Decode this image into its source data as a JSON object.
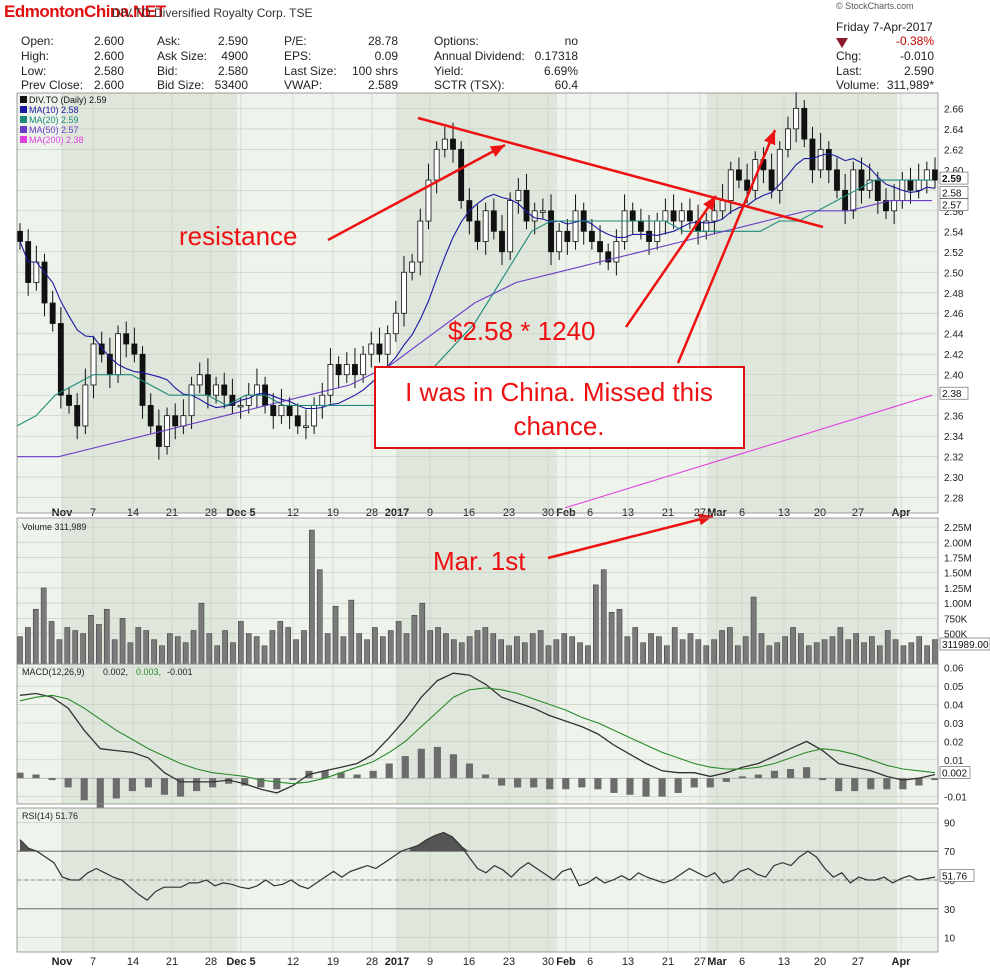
{
  "header": {
    "watermark": "EdmontonChina.NET",
    "ticker_line": "DIV.TO Diversified Royalty Corp. TSE",
    "credit": "© StockCharts.com",
    "date": "Friday 7-Apr-2017",
    "change_pct": "-0.38%",
    "chg_label": "Chg:",
    "chg_value": "-0.010",
    "last_label": "Last:",
    "last_value": "2.590",
    "volume_label": "Volume:",
    "volume_value": "311,989*",
    "down_arrow_color": "#8b1a2a",
    "rows": [
      [
        "Open:",
        "2.600",
        "Ask:",
        "2.590",
        "P/E:",
        "28.78",
        "Options:",
        "no"
      ],
      [
        "High:",
        "2.600",
        "Ask Size:",
        "4900",
        "EPS:",
        "0.09",
        "Annual Dividend:",
        "0.17318"
      ],
      [
        "Low:",
        "2.580",
        "Bid:",
        "2.580",
        "Last Size:",
        "100 shrs",
        "Yield:",
        "6.69%"
      ],
      [
        "Prev Close:",
        "2.600",
        "Bid Size:",
        "53400",
        "VWAP:",
        "2.589",
        "SCTR (TSX):",
        "60.4"
      ]
    ]
  },
  "chart_data": [
    {
      "type": "candlestick",
      "panel": "price",
      "legend": [
        {
          "label": "DIV.TO (Daily) 2.59",
          "color": "#111111"
        },
        {
          "label": "MA(10) 2.58",
          "color": "#1a1aa0"
        },
        {
          "label": "MA(20) 2.59",
          "color": "#1c8a7a"
        },
        {
          "label": "MA(50) 2.57",
          "color": "#6a3cc8"
        },
        {
          "label": "MA(200) 2.38",
          "color": "#e040e0"
        }
      ],
      "y_ticks": [
        "2.66",
        "2.64",
        "2.62",
        "2.60",
        "2.58",
        "2.56",
        "2.54",
        "2.52",
        "2.50",
        "2.48",
        "2.46",
        "2.44",
        "2.42",
        "2.40",
        "2.38",
        "2.36",
        "2.34",
        "2.32",
        "2.30",
        "2.28"
      ],
      "ylim": [
        2.265,
        2.675
      ],
      "close": [
        2.53,
        2.49,
        2.51,
        2.47,
        2.45,
        2.38,
        2.37,
        2.35,
        2.39,
        2.43,
        2.42,
        2.4,
        2.44,
        2.43,
        2.42,
        2.37,
        2.35,
        2.33,
        2.36,
        2.35,
        2.36,
        2.39,
        2.4,
        2.38,
        2.39,
        2.38,
        2.37,
        2.37,
        2.38,
        2.39,
        2.37,
        2.36,
        2.37,
        2.36,
        2.35,
        2.35,
        2.37,
        2.38,
        2.41,
        2.4,
        2.41,
        2.4,
        2.42,
        2.43,
        2.42,
        2.44,
        2.46,
        2.5,
        2.51,
        2.55,
        2.59,
        2.62,
        2.63,
        2.62,
        2.57,
        2.55,
        2.53,
        2.56,
        2.54,
        2.52,
        2.57,
        2.58,
        2.55,
        2.56,
        2.56,
        2.52,
        2.54,
        2.53,
        2.56,
        2.54,
        2.53,
        2.52,
        2.51,
        2.53,
        2.56,
        2.55,
        2.54,
        2.53,
        2.55,
        2.56,
        2.55,
        2.56,
        2.55,
        2.54,
        2.55,
        2.56,
        2.57,
        2.6,
        2.59,
        2.58,
        2.61,
        2.6,
        2.58,
        2.62,
        2.64,
        2.66,
        2.63,
        2.6,
        2.62,
        2.6,
        2.58,
        2.56,
        2.6,
        2.58,
        2.59,
        2.57,
        2.56,
        2.57,
        2.59,
        2.58,
        2.59,
        2.6,
        2.59
      ],
      "ma_20_values": [
        2.35,
        2.36,
        2.38,
        2.39,
        2.4,
        2.4,
        2.4,
        2.39,
        2.38,
        2.38,
        2.38,
        2.37,
        2.38,
        2.38,
        2.37,
        2.37,
        2.37,
        2.37,
        2.37,
        2.37,
        2.38,
        2.39,
        2.41,
        2.43,
        2.45,
        2.48,
        2.51,
        2.54,
        2.55,
        2.55,
        2.55,
        2.55,
        2.55,
        2.55,
        2.55,
        2.54,
        2.54,
        2.54,
        2.54,
        2.54,
        2.55,
        2.55,
        2.56,
        2.57,
        2.58,
        2.59,
        2.59,
        2.59,
        2.59
      ],
      "ma_50_values": [
        2.32,
        2.32,
        2.33,
        2.34,
        2.35,
        2.36,
        2.37,
        2.38,
        2.39,
        2.41,
        2.44,
        2.47,
        2.49,
        2.5,
        2.51,
        2.52,
        2.53,
        2.54,
        2.55,
        2.56,
        2.56,
        2.57,
        2.57
      ],
      "ma_200_values": [
        2.27,
        2.28,
        2.29,
        2.3,
        2.31,
        2.32,
        2.33,
        2.34,
        2.35,
        2.36,
        2.37,
        2.38
      ],
      "annotations": [
        "resistance",
        "$2.58 * 1240",
        "I was in China. Missed this chance.",
        "Mar. 1st"
      ],
      "x_labels": [
        "Nov",
        "7",
        "14",
        "21",
        "28",
        "Dec 5",
        "12",
        "19",
        "28",
        "2017",
        "9",
        "16",
        "23",
        "30",
        "Feb",
        "6",
        "13",
        "21",
        "27",
        "Mar",
        "6",
        "13",
        "20",
        "27",
        "Apr"
      ],
      "last_price_badge": "2.59",
      "ma_badges": [
        "2.58",
        "2.57",
        "2.38"
      ]
    },
    {
      "type": "bar",
      "panel": "volume",
      "legend": "Volume 311,989",
      "y_ticks": [
        "2.25M",
        "2.00M",
        "1.75M",
        "1.50M",
        "1.25M",
        "1.00M",
        "750K",
        "500K"
      ],
      "ylim": [
        0,
        2.3
      ],
      "unit": "millions",
      "last_badge": "311989.00",
      "values": [
        0.45,
        0.6,
        0.9,
        1.25,
        0.7,
        0.4,
        0.6,
        0.55,
        0.5,
        0.8,
        0.65,
        0.9,
        0.4,
        0.75,
        0.35,
        0.6,
        0.55,
        0.4,
        0.3,
        0.5,
        0.45,
        0.35,
        0.55,
        1.0,
        0.5,
        0.3,
        0.55,
        0.35,
        0.7,
        0.5,
        0.45,
        0.3,
        0.55,
        0.7,
        0.6,
        0.4,
        0.55,
        2.2,
        1.55,
        0.5,
        0.95,
        0.45,
        1.05,
        0.5,
        0.4,
        0.6,
        0.45,
        0.55,
        0.7,
        0.5,
        0.8,
        1.0,
        0.55,
        0.6,
        0.5,
        0.4,
        0.35,
        0.45,
        0.55,
        0.6,
        0.5,
        0.4,
        0.3,
        0.45,
        0.35,
        0.5,
        0.55,
        0.3,
        0.4,
        0.5,
        0.45,
        0.35,
        0.3,
        1.3,
        1.55,
        0.85,
        0.9,
        0.45,
        0.6,
        0.35,
        0.5,
        0.45,
        0.3,
        0.6,
        0.4,
        0.5,
        0.4,
        0.3,
        0.4,
        0.55,
        0.6,
        0.3,
        0.45,
        1.1,
        0.5,
        0.3,
        0.35,
        0.45,
        0.6,
        0.5,
        0.3,
        0.35,
        0.4,
        0.45,
        0.6,
        0.4,
        0.5,
        0.35,
        0.45,
        0.3,
        0.55,
        0.4,
        0.3,
        0.35,
        0.45,
        0.3,
        0.4
      ]
    },
    {
      "type": "line",
      "panel": "macd",
      "legend_prefix": "MACD(12,26,9)",
      "legend_macd": "0.002",
      "legend_signal": "0.003",
      "legend_hist": "-0.001",
      "y_ticks": [
        "0.06",
        "0.05",
        "0.04",
        "0.03",
        "0.02",
        "0.01",
        "-0.01"
      ],
      "ylim": [
        -0.014,
        0.062
      ],
      "last_badge": "0.002",
      "macd": [
        0.045,
        0.046,
        0.044,
        0.038,
        0.026,
        0.016,
        0.015,
        0.014,
        0.011,
        0.003,
        -0.002,
        -0.002,
        -0.002,
        -0.001,
        -0.003,
        -0.006,
        -0.008,
        -0.004,
        0.002,
        0.004,
        0.006,
        0.008,
        0.013,
        0.022,
        0.032,
        0.044,
        0.053,
        0.057,
        0.056,
        0.051,
        0.044,
        0.041,
        0.038,
        0.034,
        0.031,
        0.028,
        0.024,
        0.018,
        0.013,
        0.008,
        0.004,
        0.003,
        0.003,
        0.001,
        0.003,
        0.006,
        0.008,
        0.012,
        0.016,
        0.02,
        0.015,
        0.008,
        0.006,
        0.004,
        0.001,
        -0.001,
        0.0,
        0.002
      ],
      "signal": [
        0.042,
        0.044,
        0.045,
        0.043,
        0.038,
        0.032,
        0.026,
        0.021,
        0.016,
        0.012,
        0.008,
        0.005,
        0.003,
        0.002,
        0.001,
        -0.001,
        -0.002,
        -0.003,
        -0.002,
        0.0,
        0.003,
        0.006,
        0.009,
        0.014,
        0.02,
        0.028,
        0.036,
        0.044,
        0.048,
        0.049,
        0.048,
        0.046,
        0.043,
        0.04,
        0.037,
        0.033,
        0.03,
        0.026,
        0.022,
        0.018,
        0.014,
        0.011,
        0.008,
        0.006,
        0.005,
        0.005,
        0.006,
        0.008,
        0.011,
        0.014,
        0.016,
        0.015,
        0.013,
        0.01,
        0.007,
        0.005,
        0.004,
        0.003
      ]
    },
    {
      "type": "line",
      "panel": "rsi",
      "legend": "RSI(14) 51.76",
      "y_ticks": [
        "90",
        "70",
        "50",
        "30",
        "10"
      ],
      "ylim": [
        0,
        100
      ],
      "last_badge": "51.76",
      "values": [
        78,
        72,
        70,
        66,
        62,
        52,
        50,
        50,
        55,
        58,
        55,
        52,
        50,
        45,
        40,
        36,
        42,
        45,
        45,
        45,
        48,
        48,
        50,
        46,
        48,
        47,
        45,
        44,
        46,
        50,
        46,
        47,
        50,
        46,
        44,
        48,
        52,
        56,
        52,
        56,
        58,
        60,
        58,
        62,
        66,
        70,
        72,
        74,
        78,
        81,
        83,
        80,
        74,
        66,
        58,
        55,
        60,
        57,
        52,
        58,
        62,
        58,
        54,
        50,
        56,
        58,
        46,
        48,
        52,
        48,
        50,
        53,
        50,
        55,
        52,
        50,
        48,
        50,
        54,
        58,
        55,
        52,
        55,
        48,
        50,
        56,
        58,
        54,
        52,
        60,
        62,
        60,
        66,
        70,
        66,
        58,
        52,
        55,
        48,
        52,
        50,
        50,
        52,
        48,
        51,
        53,
        50,
        51,
        52
      ]
    }
  ]
}
